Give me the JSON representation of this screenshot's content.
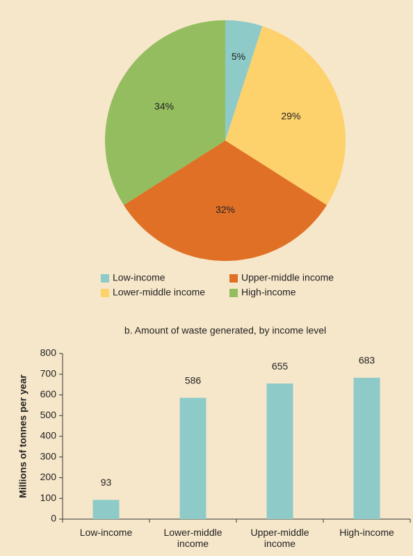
{
  "chart_data": [
    {
      "type": "pie",
      "categories": [
        "Low-income",
        "Lower-middle income",
        "Upper-middle income",
        "High-income"
      ],
      "values": [
        5,
        29,
        32,
        34
      ],
      "value_labels": [
        "5%",
        "29%",
        "32%",
        "34%"
      ],
      "colors": [
        "#8ecbc8",
        "#fdd16b",
        "#e07026",
        "#93bd5f"
      ]
    },
    {
      "type": "bar",
      "title": "b. Amount of waste generated, by income level",
      "y_label": "Millions of tonnes per year",
      "categories": [
        "Low-income",
        "Lower-middle income",
        "Upper-middle income",
        "High-income"
      ],
      "values": [
        93,
        586,
        655,
        683
      ],
      "color": "#8ecbc8",
      "ylim": [
        0,
        800
      ],
      "yticks": [
        0,
        100,
        200,
        300,
        400,
        500,
        600,
        700,
        800
      ]
    }
  ]
}
